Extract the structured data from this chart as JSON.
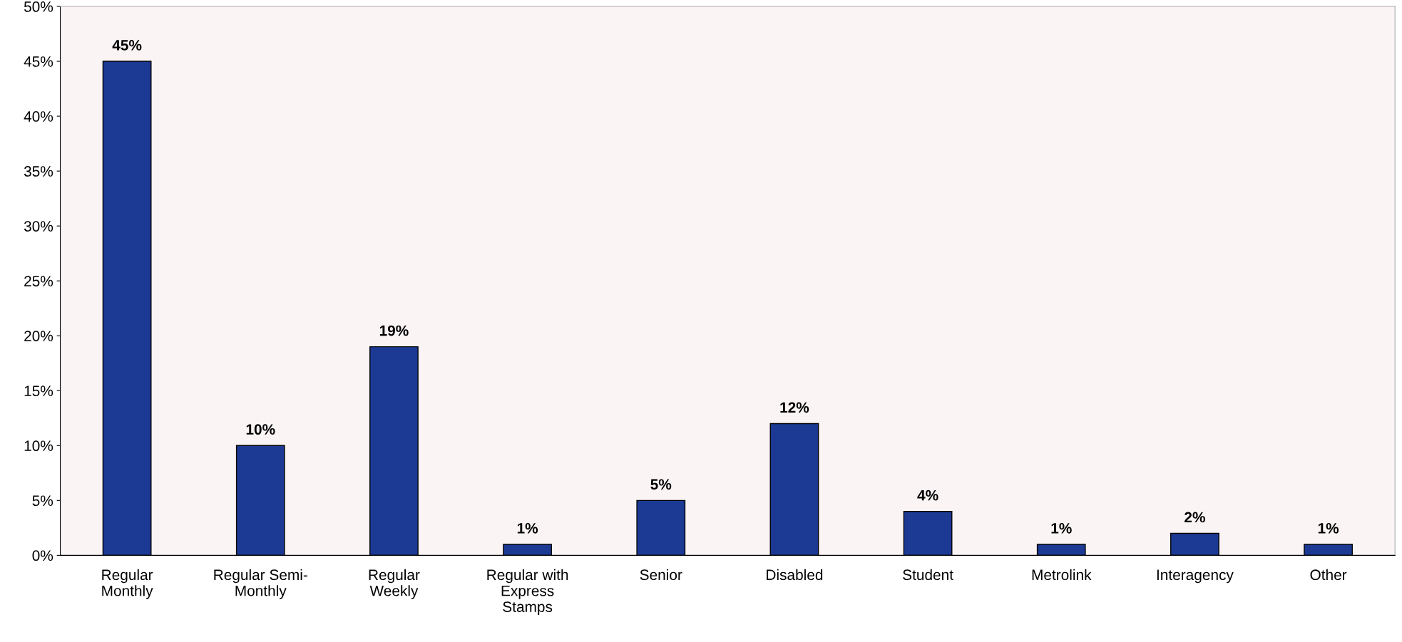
{
  "chart_data": {
    "type": "bar",
    "categories": [
      "Regular\nMonthly",
      "Regular Semi-\nMonthly",
      "Regular\nWeekly",
      "Regular with\nExpress\nStamps",
      "Senior",
      "Disabled",
      "Student",
      "Metrolink",
      "Interagency",
      "Other"
    ],
    "values": [
      45,
      10,
      19,
      1,
      5,
      12,
      4,
      1,
      2,
      1
    ],
    "value_labels": [
      "45%",
      "10%",
      "19%",
      "1%",
      "5%",
      "12%",
      "4%",
      "1%",
      "2%",
      "1%"
    ],
    "color": "#1c3a94",
    "ylim": [
      0,
      50
    ],
    "yticks": [
      {
        "value": 0,
        "label": "0%"
      },
      {
        "value": 5,
        "label": "5%"
      },
      {
        "value": 10,
        "label": "10%"
      },
      {
        "value": 15,
        "label": "15%"
      },
      {
        "value": 20,
        "label": "20%"
      },
      {
        "value": 25,
        "label": "25%"
      },
      {
        "value": 30,
        "label": "30%"
      },
      {
        "value": 35,
        "label": "35%"
      },
      {
        "value": 40,
        "label": "40%"
      },
      {
        "value": 45,
        "label": "45%"
      },
      {
        "value": 50,
        "label": "50%"
      }
    ],
    "grid": false,
    "legend": false
  }
}
